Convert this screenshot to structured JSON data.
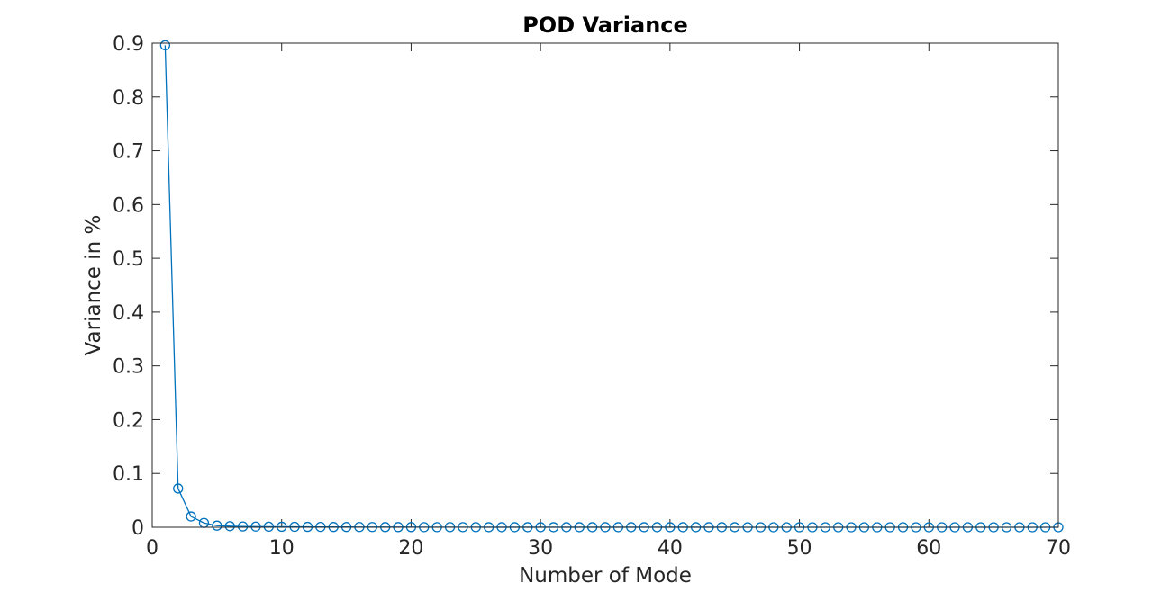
{
  "chart_data": {
    "type": "line",
    "title": "POD Variance",
    "xlabel": "Number of Mode",
    "ylabel": "Variance in %",
    "xlim": [
      0,
      70
    ],
    "ylim": [
      0,
      0.9
    ],
    "xticks": [
      "0",
      "10",
      "20",
      "30",
      "40",
      "50",
      "60",
      "70"
    ],
    "yticks": [
      "0",
      "0.1",
      "0.2",
      "0.3",
      "0.4",
      "0.5",
      "0.6",
      "0.7",
      "0.8",
      "0.9"
    ],
    "grid": false,
    "box": true,
    "marker": "circle",
    "color": "#0072bd",
    "series": [
      {
        "x": [
          1,
          2,
          3,
          4,
          5,
          6,
          7,
          8,
          9,
          10,
          11,
          12,
          13,
          14,
          15,
          16,
          17,
          18,
          19,
          20,
          21,
          22,
          23,
          24,
          25,
          26,
          27,
          28,
          29,
          30,
          31,
          32,
          33,
          34,
          35,
          36,
          37,
          38,
          39,
          40,
          41,
          42,
          43,
          44,
          45,
          46,
          47,
          48,
          49,
          50,
          51,
          52,
          53,
          54,
          55,
          56,
          57,
          58,
          59,
          60,
          61,
          62,
          63,
          64,
          65,
          66,
          67,
          68,
          69,
          70
        ],
        "values": [
          0.896,
          0.072,
          0.02,
          0.008,
          0.003,
          0.002,
          0.0015,
          0.0012,
          0.001,
          0.0009,
          0.0008,
          0.0007,
          0.0006,
          0.0005,
          0.0005,
          0.0004,
          0.0004,
          0.0003,
          0.0003,
          0.0003,
          0.0002,
          0.0002,
          0.0002,
          0.0002,
          0.0002,
          0.0001,
          0.0001,
          0.0001,
          0.0001,
          0.0001,
          0.0001,
          0.0001,
          0.0001,
          0.0001,
          0.0001,
          0.0001,
          0.0001,
          0.0001,
          0.0001,
          0.0001,
          0.0001,
          0.0001,
          0.0001,
          0.0001,
          0.0001,
          0,
          0,
          0,
          0,
          0,
          0,
          0,
          0,
          0,
          0,
          0,
          0,
          0,
          0,
          0,
          0,
          0,
          0,
          0,
          0,
          0,
          0,
          0,
          0,
          0
        ]
      }
    ]
  }
}
